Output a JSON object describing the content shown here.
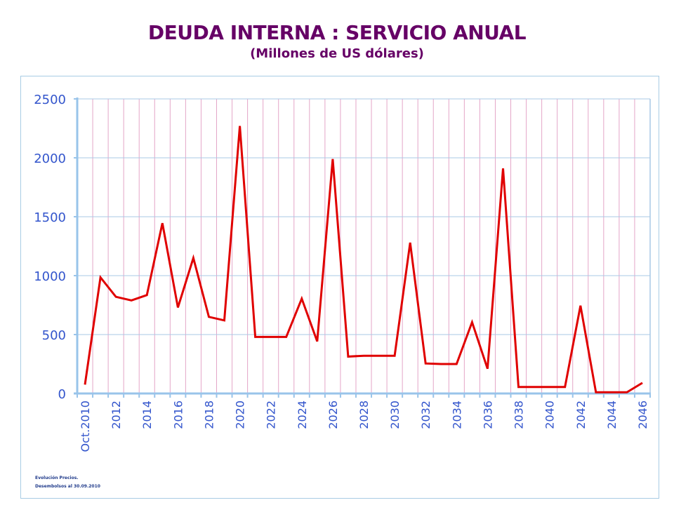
{
  "title": "DEUDA INTERNA : SERVICIO ANUAL",
  "subtitle": "(Millones de US dólares)",
  "footer": {
    "line1": "Evolución Precios.",
    "line2": "Desembolsos al 30.09.2010"
  },
  "colors": {
    "title": "#660066",
    "line": "#e00000",
    "axis": "#99c4ea",
    "hgrid": "#a9c8e6",
    "vgrid": "#e4a6c8",
    "tick_labels": "#3355cc"
  },
  "chart_data": {
    "type": "line",
    "title": "DEUDA INTERNA : SERVICIO ANUAL",
    "subtitle": "(Millones de US dólares)",
    "xlabel": "",
    "ylabel": "",
    "ylim": [
      0,
      2500
    ],
    "yticks": [
      0,
      500,
      1000,
      1500,
      2000,
      2500
    ],
    "ytick_labels": [
      "0",
      "500",
      "1000",
      "1500",
      "2000",
      "2500"
    ],
    "grid": true,
    "legend": "none",
    "categories": [
      "Oct.2010",
      "2011",
      "2012",
      "2013",
      "2014",
      "2015",
      "2016",
      "2017",
      "2018",
      "2019",
      "2020",
      "2021",
      "2022",
      "2023",
      "2024",
      "2025",
      "2026",
      "2027",
      "2028",
      "2029",
      "2030",
      "2031",
      "2032",
      "2033",
      "2034",
      "2035",
      "2036",
      "2037",
      "2038",
      "2039",
      "2040",
      "2041",
      "2042",
      "2043",
      "2044",
      "2045",
      "2046"
    ],
    "xtick_labels_shown": [
      "Oct.2010",
      "2012",
      "2014",
      "2016",
      "2018",
      "2020",
      "2022",
      "2024",
      "2026",
      "2028",
      "2030",
      "2032",
      "2034",
      "2036",
      "2038",
      "2040",
      "2042",
      "2044",
      "2046"
    ],
    "series": [
      {
        "name": "Servicio anual",
        "values": [
          75,
          985,
          820,
          790,
          835,
          1445,
          730,
          1150,
          650,
          620,
          2270,
          480,
          480,
          480,
          805,
          442,
          1990,
          313,
          320,
          320,
          320,
          1280,
          255,
          250,
          250,
          605,
          210,
          1910,
          55,
          55,
          55,
          55,
          745,
          10,
          10,
          10,
          90
        ]
      }
    ]
  }
}
